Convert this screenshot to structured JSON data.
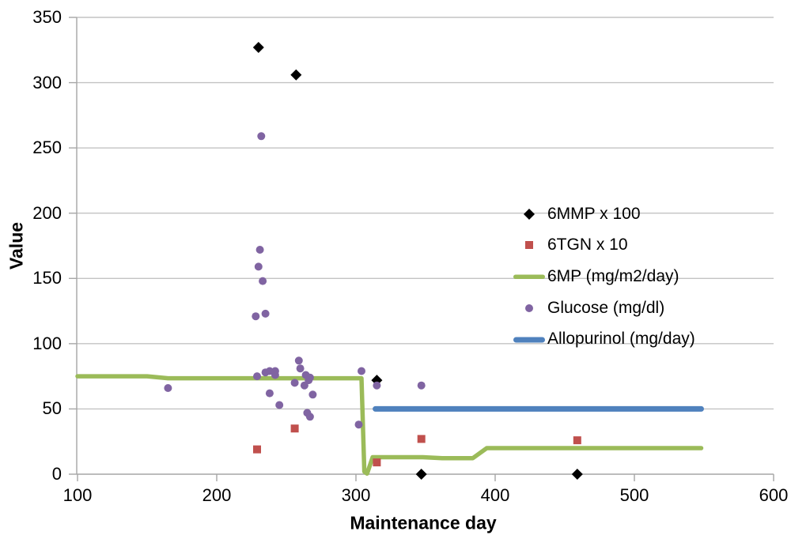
{
  "chart_data": {
    "type": "scatter",
    "title": "",
    "xlabel": "Maintenance day",
    "ylabel": "Value",
    "xlim": [
      100,
      600
    ],
    "ylim": [
      0,
      350
    ],
    "x_ticks": [
      100,
      200,
      300,
      400,
      500,
      600
    ],
    "y_ticks": [
      0,
      50,
      100,
      150,
      200,
      250,
      300,
      350
    ],
    "grid": "horizontal",
    "grid_color": "#C3C3C3",
    "axis_color": "#A6A6A6",
    "legend_position": "middle-right",
    "series": [
      {
        "name": "6MMP x 100",
        "type": "scatter",
        "marker": "diamond",
        "color": "#000000",
        "points": [
          [
            230,
            327
          ],
          [
            257,
            306
          ],
          [
            315,
            72
          ],
          [
            347,
            0
          ],
          [
            459,
            0
          ]
        ]
      },
      {
        "name": "6TGN x 10",
        "type": "scatter",
        "marker": "square",
        "color": "#C0504D",
        "points": [
          [
            229,
            19
          ],
          [
            256,
            35
          ],
          [
            315,
            9
          ],
          [
            347,
            27
          ],
          [
            459,
            26
          ]
        ]
      },
      {
        "name": "6MP (mg/m2/day)",
        "type": "line",
        "color": "#9BBB59",
        "width": 5.5,
        "points": [
          [
            100,
            75
          ],
          [
            150,
            75
          ],
          [
            165,
            73.5
          ],
          [
            304,
            73.5
          ],
          [
            306,
            2
          ],
          [
            308,
            0.5
          ],
          [
            312,
            13
          ],
          [
            348,
            13
          ],
          [
            362,
            12.3
          ],
          [
            384,
            12.3
          ],
          [
            394,
            20
          ],
          [
            460,
            20
          ],
          [
            548,
            20
          ]
        ]
      },
      {
        "name": "Glucose (mg/dl)",
        "type": "scatter",
        "marker": "circle",
        "color": "#8064A2",
        "points": [
          [
            165,
            66
          ],
          [
            228,
            121
          ],
          [
            229,
            75
          ],
          [
            230,
            159
          ],
          [
            231,
            172
          ],
          [
            232,
            259
          ],
          [
            233,
            148
          ],
          [
            235,
            123
          ],
          [
            235,
            78
          ],
          [
            238,
            79
          ],
          [
            238,
            62
          ],
          [
            242,
            79
          ],
          [
            242,
            76
          ],
          [
            245,
            53
          ],
          [
            256,
            70
          ],
          [
            259,
            87
          ],
          [
            260,
            81
          ],
          [
            263,
            68
          ],
          [
            264,
            76
          ],
          [
            265,
            47
          ],
          [
            266,
            72
          ],
          [
            267,
            74
          ],
          [
            267,
            44
          ],
          [
            269,
            61
          ],
          [
            302,
            38
          ],
          [
            304,
            79
          ],
          [
            315,
            68
          ],
          [
            347,
            68
          ]
        ]
      },
      {
        "name": "Allopurinol (mg/day)",
        "type": "line",
        "color": "#4F81BD",
        "width": 7,
        "points": [
          [
            314,
            50
          ],
          [
            548,
            50
          ]
        ]
      }
    ]
  }
}
